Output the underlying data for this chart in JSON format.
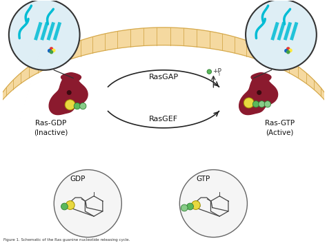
{
  "background_color": "#ffffff",
  "membrane_color": "#f5d9a0",
  "membrane_stripe_color": "#d4a84b",
  "protein_color": "#8b1a2e",
  "nucleotide_yellow": "#e8d840",
  "nucleotide_green": "#5cb85c",
  "nucleotide_green2": "#88cc88",
  "arrow_color": "#222222",
  "label_ras_gdp": "Ras-GDP\n(Inactive)",
  "label_ras_gtp": "Ras-GTP\n(Active)",
  "label_rasgap": "RasGAP",
  "label_rasgef": "RasGEF",
  "label_pi": "+P",
  "label_pi_sub": "i",
  "label_gdp": "GDP",
  "label_gtp": "GTP",
  "inset_bg": "#deeef5",
  "inset_edge": "#333333",
  "mol_bg": "#f5f5f5",
  "mol_edge": "#666666",
  "ribbon_color": "#00bcd4",
  "ribbon_dark": "#008b9a",
  "fig_width": 4.74,
  "fig_height": 3.53,
  "dpi": 100
}
